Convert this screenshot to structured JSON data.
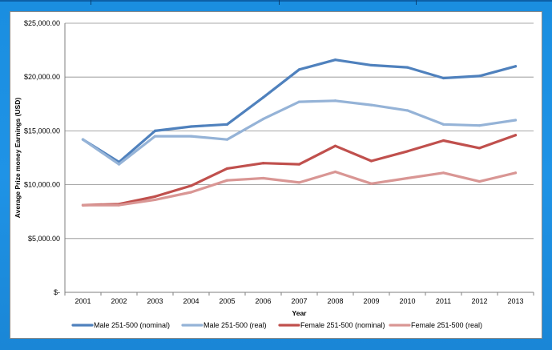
{
  "chart_data": {
    "type": "line",
    "title": "",
    "xlabel": "Year",
    "ylabel": "Average Prize money Earnings (USD)",
    "categories": [
      "2001",
      "2002",
      "2003",
      "2004",
      "2005",
      "2006",
      "2007",
      "2008",
      "2009",
      "2010",
      "2011",
      "2012",
      "2013"
    ],
    "ylim": [
      0,
      25000
    ],
    "yticks": [
      {
        "value": 0,
        "label": "$-"
      },
      {
        "value": 5000,
        "label": "$5,000.00"
      },
      {
        "value": 10000,
        "label": "$10,000.00"
      },
      {
        "value": 15000,
        "label": "$15,000.00"
      },
      {
        "value": 20000,
        "label": "$20,000.00"
      },
      {
        "value": 25000,
        "label": "$25,000.00"
      }
    ],
    "grid": true,
    "legend_position": "bottom",
    "series": [
      {
        "name": "Male 251-500 (nominal)",
        "color": "#4f81bd",
        "values": [
          14200,
          12100,
          15000,
          15400,
          15600,
          18100,
          20700,
          21600,
          21100,
          20900,
          19900,
          20100,
          21000
        ]
      },
      {
        "name": "Male 251-500 (real)",
        "color": "#95b3d7",
        "values": [
          14200,
          11900,
          14500,
          14500,
          14200,
          16100,
          17700,
          17800,
          17400,
          16900,
          15600,
          15500,
          16000
        ]
      },
      {
        "name": "Female 251-500 (nominal)",
        "color": "#c0504d",
        "values": [
          8100,
          8200,
          8900,
          9900,
          11500,
          12000,
          11900,
          13600,
          12200,
          13100,
          14100,
          13400,
          14600
        ]
      },
      {
        "name": "Female 251-500 (real)",
        "color": "#d99694",
        "values": [
          8100,
          8100,
          8600,
          9300,
          10400,
          10600,
          10200,
          11200,
          10100,
          10600,
          11100,
          10300,
          11100
        ]
      }
    ]
  }
}
